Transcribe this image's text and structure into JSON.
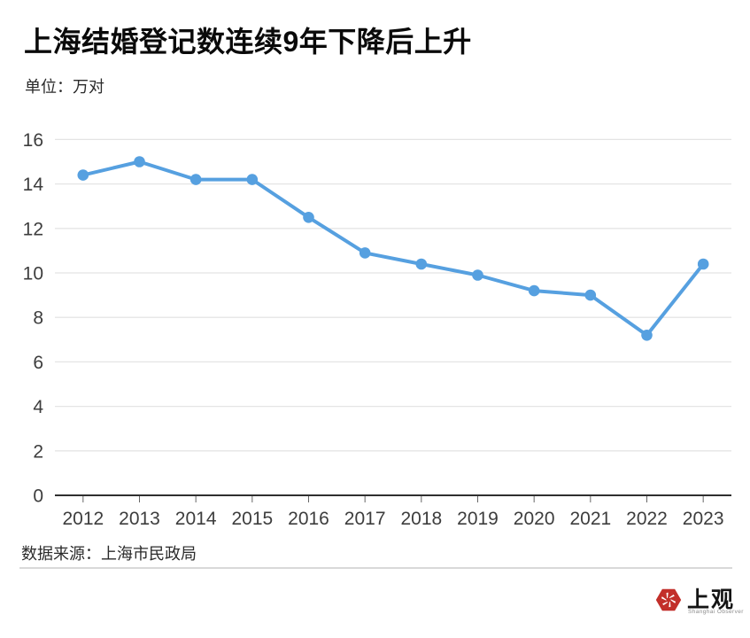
{
  "page": {
    "background": "#ffffff"
  },
  "header": {
    "title": "上海结婚登记数连续9年下降后上升",
    "unit_label": "单位：万对"
  },
  "chart_data": {
    "type": "line",
    "title": "上海结婚登记数连续9年下降后上升",
    "unit": "万对",
    "categories": [
      "2012",
      "2013",
      "2014",
      "2015",
      "2016",
      "2017",
      "2018",
      "2019",
      "2020",
      "2021",
      "2022",
      "2023"
    ],
    "values": [
      14.4,
      15.0,
      14.2,
      14.2,
      12.5,
      10.9,
      10.4,
      9.9,
      9.2,
      9.0,
      7.2,
      10.4
    ],
    "ylim": [
      0,
      16
    ],
    "ytick_interval": 2,
    "grid": true,
    "legend": false,
    "xlabel": "",
    "ylabel": "",
    "line_color": "#56a0e0",
    "point_color": "#56a0e0"
  },
  "footer": {
    "source": "数据来源：上海市民政局",
    "logo": {
      "cn": "上观",
      "en": "Shanghai Observer",
      "color": "#c22f2a"
    }
  },
  "colors": {
    "axis_label": "#3d3d3d",
    "gridline": "#e4e4e4",
    "axis_line": "#2f2f2f",
    "tick": "#666666",
    "divider": "#d9d9d9"
  }
}
